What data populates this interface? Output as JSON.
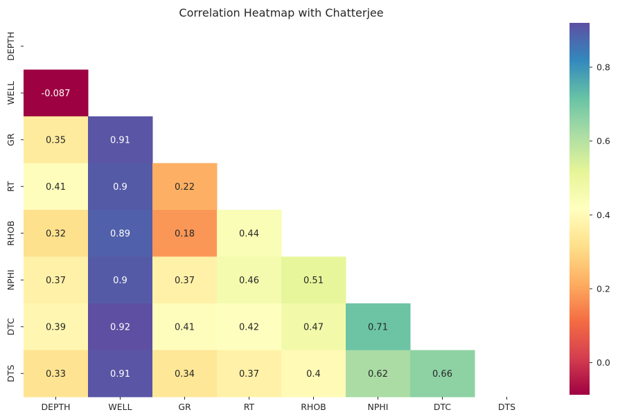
{
  "chart_data": {
    "type": "heatmap",
    "title": "Correlation Heatmap with Chatterjee",
    "variables": [
      "DEPTH",
      "WELL",
      "GR",
      "RT",
      "RHOB",
      "NPHI",
      "DTC",
      "DTS"
    ],
    "mask": "upper-triangle-including-diagonal",
    "values": [
      [
        null,
        null,
        null,
        null,
        null,
        null,
        null,
        null
      ],
      [
        -0.087,
        null,
        null,
        null,
        null,
        null,
        null,
        null
      ],
      [
        0.35,
        0.91,
        null,
        null,
        null,
        null,
        null,
        null
      ],
      [
        0.41,
        0.9,
        0.22,
        null,
        null,
        null,
        null,
        null
      ],
      [
        0.32,
        0.89,
        0.18,
        0.44,
        null,
        null,
        null,
        null
      ],
      [
        0.37,
        0.9,
        0.37,
        0.46,
        0.51,
        null,
        null,
        null
      ],
      [
        0.39,
        0.92,
        0.41,
        0.42,
        0.47,
        0.71,
        null,
        null
      ],
      [
        0.33,
        0.91,
        0.34,
        0.37,
        0.4,
        0.62,
        0.66,
        null
      ]
    ],
    "labels": [
      [
        null,
        null,
        null,
        null,
        null,
        null,
        null,
        null
      ],
      [
        "-0.087",
        null,
        null,
        null,
        null,
        null,
        null,
        null
      ],
      [
        "0.35",
        "0.91",
        null,
        null,
        null,
        null,
        null,
        null
      ],
      [
        "0.41",
        "0.9",
        "0.22",
        null,
        null,
        null,
        null,
        null
      ],
      [
        "0.32",
        "0.89",
        "0.18",
        "0.44",
        null,
        null,
        null,
        null
      ],
      [
        "0.37",
        "0.9",
        "0.37",
        "0.46",
        "0.51",
        null,
        null,
        null
      ],
      [
        "0.39",
        "0.92",
        "0.41",
        "0.42",
        "0.47",
        "0.71",
        null,
        null
      ],
      [
        "0.33",
        "0.91",
        "0.34",
        "0.37",
        "0.4",
        "0.62",
        "0.66",
        null
      ]
    ],
    "colormap": "Spectral",
    "vmin": -0.087,
    "vmax": 0.92,
    "colorbar": {
      "ticks": [
        0.0,
        0.2,
        0.4,
        0.6,
        0.8
      ],
      "tick_labels": [
        "0.0",
        "0.2",
        "0.4",
        "0.6",
        "0.8"
      ],
      "placement": "right"
    }
  }
}
